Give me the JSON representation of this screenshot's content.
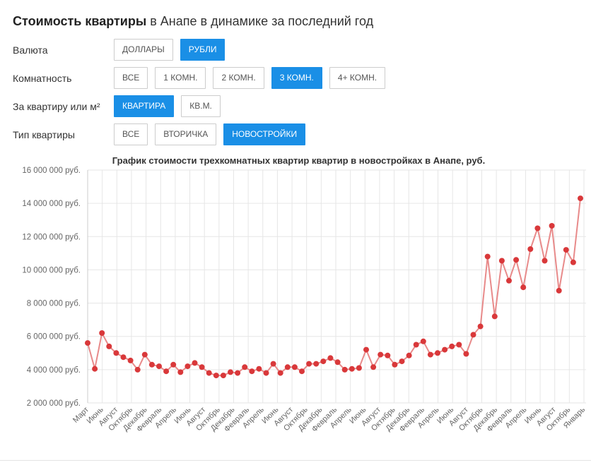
{
  "header": {
    "title_strong": "Стоимость квартиры",
    "title_rest": " в Анапе в динамике за последний год"
  },
  "filters": [
    {
      "label": "Валюта",
      "name": "currency",
      "options": [
        {
          "label": "ДОЛЛАРЫ",
          "active": false
        },
        {
          "label": "РУБЛИ",
          "active": true
        }
      ]
    },
    {
      "label": "Комнатность",
      "name": "rooms",
      "options": [
        {
          "label": "ВСЕ",
          "active": false
        },
        {
          "label": "1 КОМН.",
          "active": false
        },
        {
          "label": "2 КОМН.",
          "active": false
        },
        {
          "label": "3 КОМН.",
          "active": true
        },
        {
          "label": "4+ КОМН.",
          "active": false
        }
      ]
    },
    {
      "label": "За квартиру или м²",
      "name": "unit",
      "options": [
        {
          "label": "КВАРТИРА",
          "active": true
        },
        {
          "label": "КВ.М.",
          "active": false
        }
      ]
    },
    {
      "label": "Тип квартиры",
      "name": "type",
      "options": [
        {
          "label": "ВСЕ",
          "active": false
        },
        {
          "label": "ВТОРИЧКА",
          "active": false
        },
        {
          "label": "НОВОСТРОЙКИ",
          "active": true
        }
      ]
    }
  ],
  "colors": {
    "accent": "#1a8fe6",
    "line": "#e88a8a",
    "marker": "#d9383a",
    "grid": "#e6e6e6"
  },
  "chart_data": {
    "type": "line",
    "title": "График стоимости трехкомнатных квартир квартир в новостройках в Анапе, руб.",
    "ylim": [
      2000000,
      16000000
    ],
    "yticks": [
      2000000,
      4000000,
      6000000,
      8000000,
      10000000,
      12000000,
      14000000,
      16000000
    ],
    "ytick_labels": [
      "2 000 000 руб.",
      "4 000 000 руб.",
      "6 000 000 руб.",
      "8 000 000 руб.",
      "10 000 000 руб.",
      "12 000 000 руб.",
      "14 000 000 руб.",
      "16 000 000 руб."
    ],
    "grid": true,
    "legend": "none",
    "x_labels": [
      "Март",
      "Июнь",
      "Август",
      "Октябрь",
      "Декабрь",
      "Февраль",
      "Апрель",
      "Июнь",
      "Август",
      "Октябрь",
      "Декабрь",
      "Февраль",
      "Апрель",
      "Июнь",
      "Август",
      "Октябрь",
      "Декабрь",
      "Февраль",
      "Апрель",
      "Июнь",
      "Август",
      "Октябрь",
      "Декабрь",
      "Февраль",
      "Апрель",
      "Июнь",
      "Август",
      "Октябрь",
      "Декабрь",
      "Февраль",
      "Апрель",
      "Июнь",
      "Август",
      "Октябрь",
      "Январь"
    ],
    "series": [
      {
        "values": [
          5600000,
          4050000,
          6200000,
          5400000,
          5000000,
          4750000,
          4550000,
          4000000,
          4900000,
          4300000,
          4200000,
          3900000,
          4300000,
          3850000,
          4200000,
          4400000,
          4150000,
          3800000,
          3650000,
          3650000,
          3850000,
          3800000,
          4150000,
          3900000,
          4050000,
          3800000,
          4350000,
          3800000,
          4150000,
          4150000,
          3900000,
          4350000,
          4350000,
          4500000,
          4700000,
          4450000,
          4000000,
          4050000,
          4100000,
          5200000,
          4150000,
          4900000,
          4850000,
          4300000,
          4500000,
          4850000,
          5500000,
          5700000,
          4900000,
          5000000,
          5200000,
          5400000,
          5500000,
          4950000,
          6100000,
          6600000,
          10800000,
          7200000,
          10550000,
          9350000,
          10600000,
          8950000,
          11250000,
          12500000,
          10550000,
          12650000,
          8750000,
          11200000,
          10450000,
          14300000
        ]
      }
    ]
  }
}
